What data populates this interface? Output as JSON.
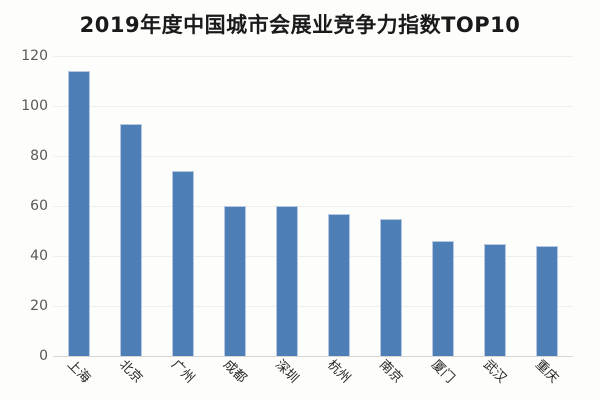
{
  "chart_data": {
    "type": "bar",
    "title": "2019年度中国城市会展业竞争力指数TOP10",
    "categories": [
      "上海",
      "北京",
      "广州",
      "成都",
      "深圳",
      "杭州",
      "南京",
      "厦门",
      "武汉",
      "重庆"
    ],
    "values": [
      114,
      93,
      74,
      60,
      60,
      57,
      55,
      46,
      45,
      44
    ],
    "xlabel": "",
    "ylabel": "",
    "ylim": [
      0,
      120
    ],
    "y_ticks": [
      0,
      20,
      40,
      60,
      80,
      100,
      120
    ],
    "grid": true,
    "legend": false,
    "legend_position": "none",
    "colors": {
      "bar": "#4d7eb5",
      "bar_border": "#b6c9e1",
      "gridline": "#f0edeb",
      "axis_line": "#d9d6d3",
      "title_text": "#1a1a1a",
      "tick_text": "#595959",
      "category_text": "#262626",
      "background": "#fdfdfb"
    }
  }
}
